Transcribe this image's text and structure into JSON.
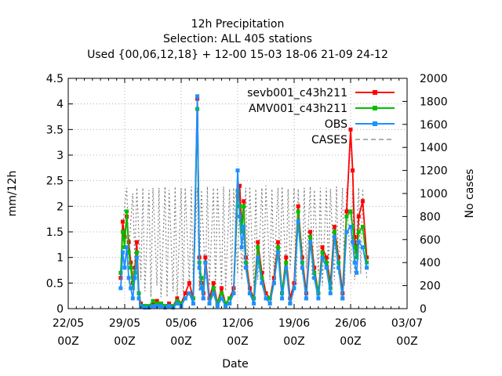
{
  "chart_data": {
    "type": "line",
    "title_lines": [
      "12h Precipitation",
      "Selection: ALL    405 stations",
      "Used {00,06,12,18} + 12-00 15-03 18-06 21-09 24-12"
    ],
    "xlabel": "Date",
    "ylabel": "mm/12h",
    "y2label": "No cases",
    "grid": true,
    "legend_position": "top-right",
    "x_range_days": [
      0,
      42
    ],
    "x_ticks": [
      {
        "day": 0,
        "label1": "22/05",
        "label2": "00Z"
      },
      {
        "day": 7,
        "label1": "29/05",
        "label2": "00Z"
      },
      {
        "day": 14,
        "label1": "05/06",
        "label2": "00Z"
      },
      {
        "day": 21,
        "label1": "12/06",
        "label2": "00Z"
      },
      {
        "day": 28,
        "label1": "19/06",
        "label2": "00Z"
      },
      {
        "day": 35,
        "label1": "26/06",
        "label2": "00Z"
      },
      {
        "day": 42,
        "label1": "03/07",
        "label2": "00Z"
      }
    ],
    "ylim": [
      0,
      4.5
    ],
    "y_ticks": [
      "0",
      "0.5",
      "1",
      "1.5",
      "2",
      "2.5",
      "3",
      "3.5",
      "4",
      "4.5"
    ],
    "y2lim": [
      0,
      2000
    ],
    "y2_ticks": [
      "0",
      "200",
      "400",
      "600",
      "800",
      "1000",
      "1200",
      "1400",
      "1600",
      "1800",
      "2000"
    ],
    "series": [
      {
        "name": "sevb001_c43h211",
        "color": "#ff0000",
        "x": [
          6.5,
          6.75,
          7,
          7.25,
          7.5,
          7.75,
          8,
          8.25,
          8.5,
          8.75,
          9,
          9.5,
          10,
          10.5,
          11,
          11.5,
          12,
          12.5,
          13,
          13.5,
          14,
          14.5,
          15,
          15.5,
          16,
          16.25,
          16.5,
          16.75,
          17,
          17.5,
          18,
          18.5,
          19,
          19.5,
          20,
          20.5,
          21,
          21.25,
          21.5,
          21.75,
          22,
          22.5,
          23,
          23.5,
          24,
          24.5,
          25,
          25.5,
          26,
          26.5,
          27,
          27.5,
          28,
          28.5,
          29,
          29.5,
          30,
          30.5,
          31,
          31.5,
          32,
          32.5,
          33,
          33.5,
          34,
          34.5,
          35,
          35.25,
          35.5,
          35.75,
          36,
          36.5,
          37
        ],
        "values": [
          0.6,
          1.7,
          1.4,
          1.8,
          1.3,
          0.9,
          0.5,
          0.8,
          1.3,
          0.3,
          0.1,
          0.05,
          0.05,
          0.1,
          0.15,
          0.1,
          0.05,
          0.1,
          0.05,
          0.2,
          0.1,
          0.3,
          0.5,
          0.2,
          4.1,
          1.0,
          0.5,
          0.3,
          1.0,
          0.2,
          0.5,
          0.1,
          0.4,
          0.1,
          0.2,
          0.4,
          2.2,
          2.4,
          1.6,
          2.1,
          1.0,
          0.4,
          0.2,
          1.3,
          0.7,
          0.3,
          0.2,
          0.6,
          1.3,
          0.3,
          1.0,
          0.2,
          0.5,
          2.0,
          1.0,
          0.3,
          1.5,
          0.8,
          0.3,
          1.2,
          1.0,
          0.5,
          1.6,
          1.0,
          0.3,
          1.9,
          3.5,
          2.7,
          1.4,
          1.1,
          1.8,
          2.1,
          1.0
        ]
      },
      {
        "name": "AMV001_c43h211",
        "color": "#00c000",
        "x": [
          6.5,
          6.75,
          7,
          7.25,
          7.5,
          7.75,
          8,
          8.25,
          8.5,
          8.75,
          9,
          9.5,
          10,
          10.5,
          11,
          11.5,
          12,
          12.5,
          13,
          13.5,
          14,
          14.5,
          15,
          15.5,
          16,
          16.25,
          16.5,
          16.75,
          17,
          17.5,
          18,
          18.5,
          19,
          19.5,
          20,
          20.5,
          21,
          21.25,
          21.5,
          21.75,
          22,
          22.5,
          23,
          23.5,
          24,
          24.5,
          25,
          25.5,
          26,
          26.5,
          27,
          27.5,
          28,
          28.5,
          29,
          29.5,
          30,
          30.5,
          31,
          31.5,
          32,
          32.5,
          33,
          33.5,
          34,
          34.5,
          35,
          35.25,
          35.5,
          35.75,
          36,
          36.5,
          37
        ],
        "values": [
          0.7,
          1.5,
          1.2,
          1.9,
          1.1,
          0.8,
          0.4,
          0.7,
          1.1,
          0.3,
          0.05,
          0.05,
          0.05,
          0.15,
          0.1,
          0.1,
          0.05,
          0.05,
          0.05,
          0.15,
          0.1,
          0.2,
          0.3,
          0.2,
          3.9,
          0.9,
          0.6,
          0.2,
          0.9,
          0.1,
          0.4,
          0.1,
          0.3,
          0.1,
          0.2,
          0.3,
          2.3,
          2.0,
          1.5,
          2.0,
          0.9,
          0.3,
          0.2,
          1.2,
          0.6,
          0.2,
          0.2,
          0.5,
          1.2,
          0.3,
          0.9,
          0.1,
          0.4,
          1.9,
          0.9,
          0.2,
          1.4,
          0.7,
          0.3,
          1.1,
          0.9,
          0.4,
          1.5,
          0.9,
          0.2,
          1.8,
          1.9,
          1.6,
          1.2,
          1.0,
          1.5,
          1.6,
          0.9
        ]
      },
      {
        "name": "OBS",
        "color": "#1e90ff",
        "x": [
          6.5,
          6.75,
          7,
          7.25,
          7.5,
          7.75,
          8,
          8.25,
          8.5,
          8.75,
          9,
          9.5,
          10,
          10.5,
          11,
          11.5,
          12,
          12.5,
          13,
          13.5,
          14,
          14.5,
          15,
          15.5,
          16,
          16.25,
          16.5,
          16.75,
          17,
          17.5,
          18,
          18.5,
          19,
          19.5,
          20,
          20.5,
          21,
          21.25,
          21.5,
          21.75,
          22,
          22.5,
          23,
          23.5,
          24,
          24.5,
          25,
          25.5,
          26,
          26.5,
          27,
          27.5,
          28,
          28.5,
          29,
          29.5,
          30,
          30.5,
          31,
          31.5,
          32,
          32.5,
          33,
          33.5,
          34,
          34.5,
          35,
          35.25,
          35.5,
          35.75,
          36,
          36.5,
          37
        ],
        "values": [
          0.4,
          1.1,
          0.8,
          1.2,
          0.6,
          0.4,
          0.2,
          0.6,
          1.0,
          0.2,
          0.05,
          0.02,
          0.02,
          0.05,
          0.05,
          0.05,
          0.02,
          0.05,
          0.02,
          0.1,
          0.05,
          0.2,
          0.3,
          0.1,
          4.15,
          0.8,
          0.4,
          0.2,
          0.9,
          0.1,
          0.3,
          0.05,
          0.2,
          0.05,
          0.1,
          0.3,
          2.7,
          1.8,
          1.2,
          1.6,
          0.8,
          0.3,
          0.1,
          1.0,
          0.5,
          0.2,
          0.1,
          0.5,
          1.1,
          0.2,
          0.8,
          0.1,
          0.4,
          1.7,
          0.8,
          0.2,
          1.3,
          0.6,
          0.2,
          1.0,
          0.8,
          0.3,
          1.4,
          0.8,
          0.2,
          1.5,
          1.6,
          1.3,
          0.9,
          0.7,
          1.3,
          1.2,
          0.8
        ]
      },
      {
        "name": "CASES",
        "color": "#808080",
        "axis": "y2",
        "x": [
          6.5,
          6.75,
          7,
          7.25,
          7.5,
          8,
          8.25,
          8.5,
          9,
          9.25,
          9.5,
          10,
          10.25,
          10.5,
          11,
          11.25,
          11.5,
          12,
          12.25,
          12.5,
          13,
          13.25,
          13.5,
          14,
          14.25,
          14.5,
          15,
          15.25,
          15.5,
          16,
          16.25,
          16.5,
          17,
          17.25,
          17.5,
          18,
          18.25,
          18.5,
          19,
          19.25,
          19.5,
          20,
          20.25,
          20.5,
          21,
          21.25,
          21.5,
          22,
          22.25,
          22.5,
          23,
          23.25,
          23.5,
          24,
          24.25,
          24.5,
          25,
          25.25,
          25.5,
          26,
          26.25,
          26.5,
          27,
          27.25,
          27.5,
          28,
          28.25,
          28.5,
          29,
          29.25,
          29.5,
          30,
          30.25,
          30.5,
          31,
          31.25,
          31.5,
          32,
          32.25,
          32.5,
          33,
          33.25,
          33.5,
          34,
          34.25,
          34.5,
          35,
          35.25,
          35.5,
          36,
          36.25,
          36.5,
          37
        ],
        "values": [
          300,
          700,
          900,
          1050,
          500,
          1000,
          400,
          1050,
          250,
          1050,
          150,
          1030,
          100,
          1050,
          200,
          1050,
          100,
          1060,
          100,
          1030,
          150,
          1060,
          100,
          1050,
          150,
          1050,
          200,
          1060,
          200,
          1050,
          150,
          1030,
          250,
          1060,
          200,
          1050,
          150,
          1050,
          200,
          1060,
          150,
          1040,
          200,
          1050,
          300,
          1060,
          250,
          1050,
          300,
          1060,
          200,
          1040,
          250,
          1050,
          300,
          1070,
          250,
          1040,
          300,
          1050,
          250,
          1060,
          300,
          1040,
          350,
          1050,
          200,
          1040,
          300,
          1050,
          350,
          1060,
          250,
          1030,
          300,
          1050,
          200,
          1050,
          300,
          1040,
          250,
          1060,
          300,
          1050,
          200,
          1040,
          300,
          1030,
          250,
          1050,
          300,
          1040,
          250
        ]
      }
    ]
  }
}
